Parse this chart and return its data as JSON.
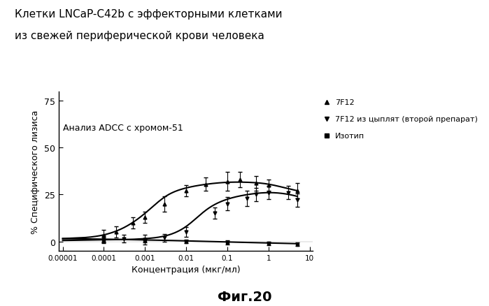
{
  "title_line1": "Клетки LNCaP-C42b с эффекторными клетками",
  "title_line2": "из свежей периферической крови человека",
  "xlabel": "Концентрация (мкг/мл)",
  "ylabel": "% Специфического лизиса",
  "annotation": "Анализ ADCC с хромом-51",
  "fig_label": "Фиг.20",
  "legend_entries": [
    "7F12",
    "7F12 из цыплят (второй препарат)",
    "Изотип"
  ],
  "ylim": [
    -5,
    80
  ],
  "yticks": [
    0,
    25,
    50,
    75
  ],
  "ytick_labels": [
    "0",
    "25",
    "50",
    "75"
  ],
  "7F12_x": [
    0.0001,
    0.0002,
    0.0005,
    0.001,
    0.003,
    0.01,
    0.03,
    0.1,
    0.2,
    0.5,
    1.0,
    5.0
  ],
  "7F12_y": [
    3.0,
    5.0,
    10.0,
    13.0,
    20.0,
    27.0,
    30.5,
    32.0,
    33.0,
    31.0,
    30.0,
    27.0
  ],
  "7F12_yerr": [
    3.0,
    3.0,
    3.0,
    3.0,
    4.0,
    3.0,
    3.5,
    5.0,
    4.0,
    4.0,
    3.0,
    4.0
  ],
  "7F12b_x": [
    0.0001,
    0.0003,
    0.001,
    0.003,
    0.01,
    0.05,
    0.1,
    0.3,
    0.5,
    1.0,
    3.0,
    5.0
  ],
  "7F12b_y": [
    1.0,
    1.5,
    1.0,
    2.0,
    5.0,
    15.0,
    20.0,
    23.0,
    25.0,
    26.0,
    26.0,
    22.0
  ],
  "7F12b_yerr": [
    2.0,
    2.0,
    2.5,
    2.0,
    2.5,
    3.0,
    3.5,
    4.0,
    3.5,
    3.5,
    3.5,
    3.5
  ],
  "iso_x": [
    0.0001,
    0.001,
    0.01,
    0.1,
    1.0,
    5.0
  ],
  "iso_y": [
    1.0,
    0.5,
    0.0,
    -0.5,
    -1.0,
    -1.5
  ],
  "iso_yerr": [
    1.5,
    1.0,
    1.0,
    1.0,
    1.0,
    1.0
  ],
  "curve1_x_log": [
    -5.0,
    -4.5,
    -4.0,
    -3.5,
    -3.0,
    -2.5,
    -2.0,
    -1.5,
    -1.0,
    -0.5,
    0.0,
    0.5,
    0.7
  ],
  "curve1_y": [
    1.5,
    2.0,
    3.5,
    7.5,
    15.0,
    24.0,
    28.5,
    30.5,
    31.5,
    31.5,
    30.5,
    28.0,
    27.0
  ],
  "curve2_x_log": [
    -5.0,
    -4.5,
    -4.0,
    -3.5,
    -3.0,
    -2.5,
    -2.0,
    -1.5,
    -1.0,
    -0.5,
    0.0,
    0.5,
    0.7
  ],
  "curve2_y": [
    0.5,
    0.7,
    0.9,
    1.0,
    1.5,
    3.0,
    8.0,
    17.0,
    22.5,
    25.0,
    26.0,
    25.0,
    24.0
  ],
  "curve_iso_x_log": [
    -5.0,
    -4.0,
    -3.0,
    -2.0,
    -1.0,
    0.0,
    0.7
  ],
  "curve_iso_y": [
    1.5,
    1.2,
    0.8,
    0.3,
    -0.3,
    -0.8,
    -1.2
  ]
}
